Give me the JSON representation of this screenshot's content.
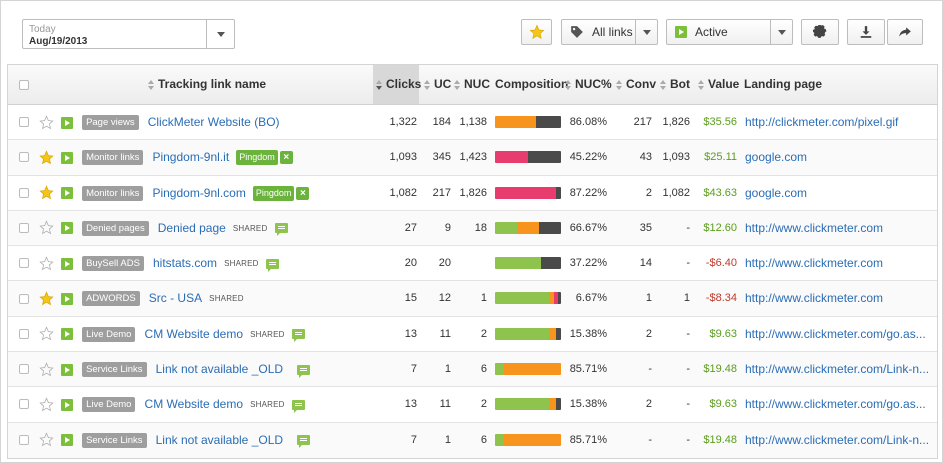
{
  "toolbar": {
    "date_label": "Today",
    "date_value": "Aug/19/2013",
    "links_filter": "All links",
    "status_filter": "Active",
    "icons": [
      "star-icon",
      "tag-icon",
      "play-icon",
      "gear-icon",
      "download-icon",
      "share-icon"
    ]
  },
  "columns": {
    "name": "Tracking link name",
    "clicks": "Clicks",
    "uc": "UC",
    "nuc": "NUC",
    "composition": "Composition",
    "nucp": "NUC%",
    "conv": "Conv",
    "bot": "Bot",
    "value": "Value",
    "landing": "Landing page"
  },
  "colors": {
    "green": "#8ec44d",
    "orange": "#f7941d",
    "red": "#e83b6e",
    "dark": "#4a4a4a",
    "star": "#f5c518"
  },
  "rows": [
    {
      "starred": false,
      "group": "Page views",
      "name": "ClickMeter Website (BO)",
      "shared": "",
      "note": false,
      "tag": "",
      "clicks": "1,322",
      "uc": "184",
      "nuc": "1,138",
      "comp": [
        0.0,
        0.62,
        0.0,
        0.38
      ],
      "nucp": "86.08%",
      "conv": "217",
      "bot": "1,826",
      "value": "$35.56",
      "value_neg": false,
      "landing": "http://clickmeter.com/pixel.gif"
    },
    {
      "starred": true,
      "group": "Monitor links",
      "name": "Pingdom-9nl.it",
      "shared": "",
      "note": false,
      "tag": "Pingdom",
      "clicks": "1,093",
      "uc": "345",
      "nuc": "1,423",
      "comp": [
        0.0,
        0.0,
        0.5,
        0.5
      ],
      "nucp": "45.22%",
      "conv": "43",
      "bot": "1,093",
      "value": "$25.11",
      "value_neg": false,
      "landing": "google.com"
    },
    {
      "starred": true,
      "group": "Monitor links",
      "name": "Pingdom-9nl.com",
      "shared": "",
      "note": false,
      "tag": "Pingdom",
      "clicks": "1,082",
      "uc": "217",
      "nuc": "1,826",
      "comp": [
        0.0,
        0.0,
        0.93,
        0.07
      ],
      "nucp": "87.22%",
      "conv": "2",
      "bot": "1,082",
      "value": "$43.63",
      "value_neg": false,
      "landing": "google.com"
    },
    {
      "starred": false,
      "group": "Denied pages",
      "name": "Denied page",
      "shared": "SHARED",
      "note": true,
      "tag": "",
      "clicks": "27",
      "uc": "9",
      "nuc": "18",
      "comp": [
        0.33,
        0.33,
        0.0,
        0.34
      ],
      "nucp": "66.67%",
      "conv": "35",
      "bot": "-",
      "value": "$12.60",
      "value_neg": false,
      "landing": "http://www.clickmeter.com"
    },
    {
      "starred": false,
      "group": "BuySell ADS",
      "name": "hitstats.com",
      "shared": "SHARED",
      "note": true,
      "tag": "",
      "clicks": "20",
      "uc": "20",
      "nuc": "",
      "comp": [
        0.7,
        0.0,
        0.0,
        0.3
      ],
      "nucp": "37.22%",
      "conv": "14",
      "bot": "-",
      "value": "-$6.40",
      "value_neg": true,
      "landing": "http://www.clickmeter.com"
    },
    {
      "starred": true,
      "group": "ADWORDS",
      "name": "Src - USA",
      "shared": "SHARED",
      "note": false,
      "tag": "",
      "clicks": "15",
      "uc": "12",
      "nuc": "1",
      "comp": [
        0.82,
        0.08,
        0.05,
        0.05
      ],
      "nucp": "6.67%",
      "conv": "1",
      "bot": "1",
      "value": "-$8.34",
      "value_neg": true,
      "landing": "http://www.clickmeter.com"
    },
    {
      "starred": false,
      "group": "Live Demo",
      "name": "CM Website demo",
      "shared": "SHARED",
      "note": true,
      "tag": "",
      "clicks": "13",
      "uc": "11",
      "nuc": "2",
      "comp": [
        0.82,
        0.1,
        0.0,
        0.08
      ],
      "nucp": "15.38%",
      "conv": "2",
      "bot": "-",
      "value": "$9.63",
      "value_neg": false,
      "landing": "http://www.clickmeter.com/go.as..."
    },
    {
      "starred": false,
      "group": "Service Links",
      "name": "Link not available _OLD",
      "shared": "",
      "note": true,
      "tag": "",
      "clicks": "7",
      "uc": "1",
      "nuc": "6",
      "comp": [
        0.14,
        0.86,
        0.0,
        0.0
      ],
      "nucp": "85.71%",
      "conv": "-",
      "bot": "-",
      "value": "$19.48",
      "value_neg": false,
      "landing": "http://www.clickmeter.com/Link-n..."
    },
    {
      "starred": false,
      "group": "Live Demo",
      "name": "CM Website demo",
      "shared": "SHARED",
      "note": true,
      "tag": "",
      "clicks": "13",
      "uc": "11",
      "nuc": "2",
      "comp": [
        0.82,
        0.1,
        0.0,
        0.08
      ],
      "nucp": "15.38%",
      "conv": "2",
      "bot": "-",
      "value": "$9.63",
      "value_neg": false,
      "landing": "http://www.clickmeter.com/go.as..."
    },
    {
      "starred": false,
      "group": "Service Links",
      "name": "Link not available _OLD",
      "shared": "",
      "note": true,
      "tag": "",
      "clicks": "7",
      "uc": "1",
      "nuc": "6",
      "comp": [
        0.14,
        0.86,
        0.0,
        0.0
      ],
      "nucp": "85.71%",
      "conv": "-",
      "bot": "-",
      "value": "$19.48",
      "value_neg": false,
      "landing": "http://www.clickmeter.com/Link-n..."
    }
  ]
}
